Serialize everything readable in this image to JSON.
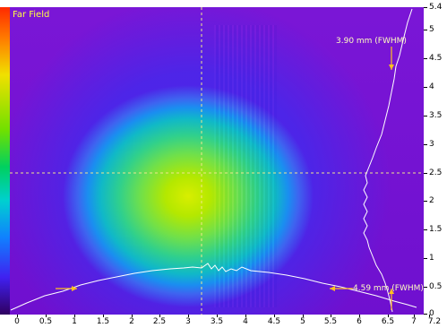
{
  "view": {
    "title": "Far Field",
    "annotation_vertical": "3.90 mm (FWHM)",
    "annotation_horizontal": "4.59 mm (FWHM)"
  },
  "axes": {
    "x_ticks": [
      "0",
      "0.5",
      "1",
      "1.5",
      "2",
      "2.5",
      "3",
      "3.5",
      "4",
      "4.5",
      "5",
      "5.5",
      "6",
      "6.5",
      "7",
      "7.2"
    ],
    "y_ticks": [
      "5.4",
      "5",
      "4.5",
      "4",
      "3.5",
      "3",
      "2.5",
      "2",
      "1.5",
      "1",
      "0.5",
      "0"
    ]
  },
  "crosshair": {
    "x_mm": 3.3,
    "y_mm": 2.5
  },
  "colors": {
    "crosshair": "#f0e68c",
    "profile_line": "#ffffff",
    "marker": "#ffc020",
    "text": "#ffff40"
  }
}
